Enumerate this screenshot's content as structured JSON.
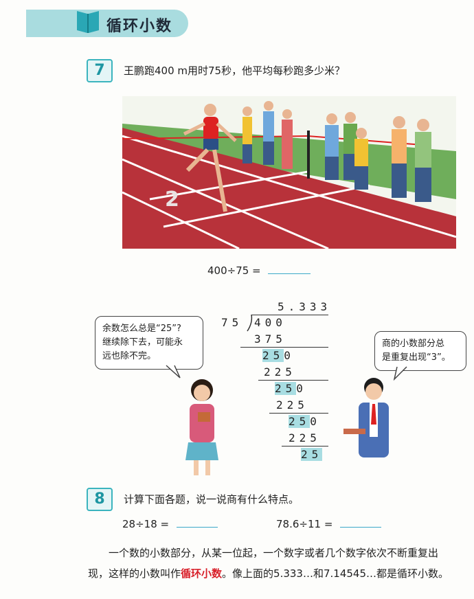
{
  "section": {
    "title": "循环小数",
    "icon": "book-icon"
  },
  "problem7": {
    "number": "7",
    "question": "王鹏跑400 m用时75秒，他平均每秒跑多少米？",
    "equation": "400÷75 ="
  },
  "illustration": {
    "track_lane_number": "2"
  },
  "division": {
    "quotient": "5.333",
    "divisor": "75",
    "dividend": "400",
    "rows": [
      {
        "value": "375",
        "highlight": ""
      },
      {
        "value": "25",
        "highlight": "25",
        "suffix": "0"
      },
      {
        "value": "225",
        "highlight": ""
      },
      {
        "value": "25",
        "highlight": "25",
        "suffix": "0"
      },
      {
        "value": "225",
        "highlight": ""
      },
      {
        "value": "25",
        "highlight": "25",
        "suffix": "0"
      },
      {
        "value": "225",
        "highlight": ""
      },
      {
        "value": "25",
        "highlight": "25",
        "suffix": ""
      }
    ]
  },
  "girl_bubble": {
    "line1": "余数怎么总是“25”?",
    "line2": "继续除下去，可能永",
    "line3": "远也除不完。"
  },
  "boy_bubble": {
    "line1": "商的小数部分总",
    "line2": "是重复出现“3”。"
  },
  "problem8": {
    "number": "8",
    "question": "计算下面各题，说一说商有什么特点。",
    "eq1": "28÷18 =",
    "eq2": "78.6÷11 ="
  },
  "definition": {
    "line1": "一个数的小数部分，从某一位起，一个数字或者几个数字依次不断重复出",
    "line2_pre": "现，这样的小数叫作",
    "term": "循环小数",
    "line2_post": "。像上面的5.333…和7.14545…都是循环小数。"
  },
  "colors": {
    "accent": "#3bb4be",
    "track": "#b8323a",
    "term": "#d8202a"
  }
}
